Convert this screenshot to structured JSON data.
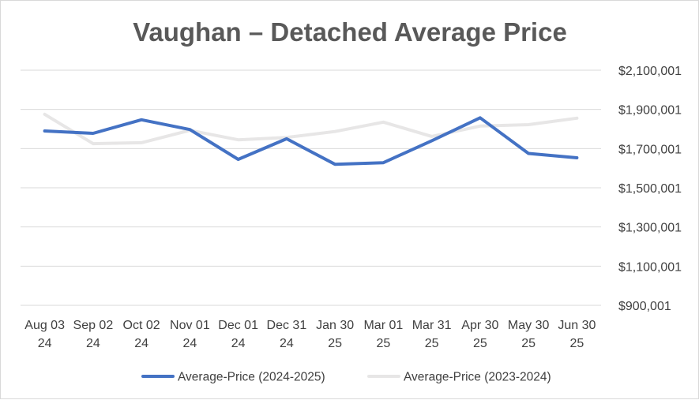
{
  "chart_data": {
    "type": "line",
    "title": "Vaughan – Detached Average Price",
    "categories": [
      [
        "Aug 03",
        "24"
      ],
      [
        "Sep 02",
        "24"
      ],
      [
        "Oct 02",
        "24"
      ],
      [
        "Nov 01",
        "24"
      ],
      [
        "Dec 01",
        "24"
      ],
      [
        "Dec 31",
        "24"
      ],
      [
        "Jan 30",
        "25"
      ],
      [
        "Mar 01",
        "25"
      ],
      [
        "Mar 31",
        "25"
      ],
      [
        "Apr 30",
        "25"
      ],
      [
        "May 30",
        "25"
      ],
      [
        "Jun 30",
        "25"
      ]
    ],
    "y_ticks": [
      900001,
      1100001,
      1300001,
      1500001,
      1700001,
      1900001,
      2100001
    ],
    "y_tick_labels": [
      "$900,001",
      "$1,100,001",
      "$1,300,001",
      "$1,500,001",
      "$1,700,001",
      "$1,900,001",
      "$2,100,001"
    ],
    "ylim": [
      900001,
      2100001
    ],
    "y_axis_position": "right",
    "grid": true,
    "legend_position": "bottom",
    "series": [
      {
        "name": "Average-Price (2024-2025)",
        "color": "#4472c4",
        "values": [
          1790000,
          1778000,
          1847000,
          1797000,
          1645000,
          1750000,
          1620000,
          1628000,
          1740000,
          1857000,
          1675000,
          1653000
        ]
      },
      {
        "name": "Average-Price (2023-2024)",
        "color": "#e7e6e6",
        "values": [
          1875000,
          1725000,
          1730000,
          1793000,
          1745000,
          1757000,
          1787000,
          1835000,
          1762000,
          1815000,
          1822000,
          1855000
        ]
      }
    ]
  }
}
